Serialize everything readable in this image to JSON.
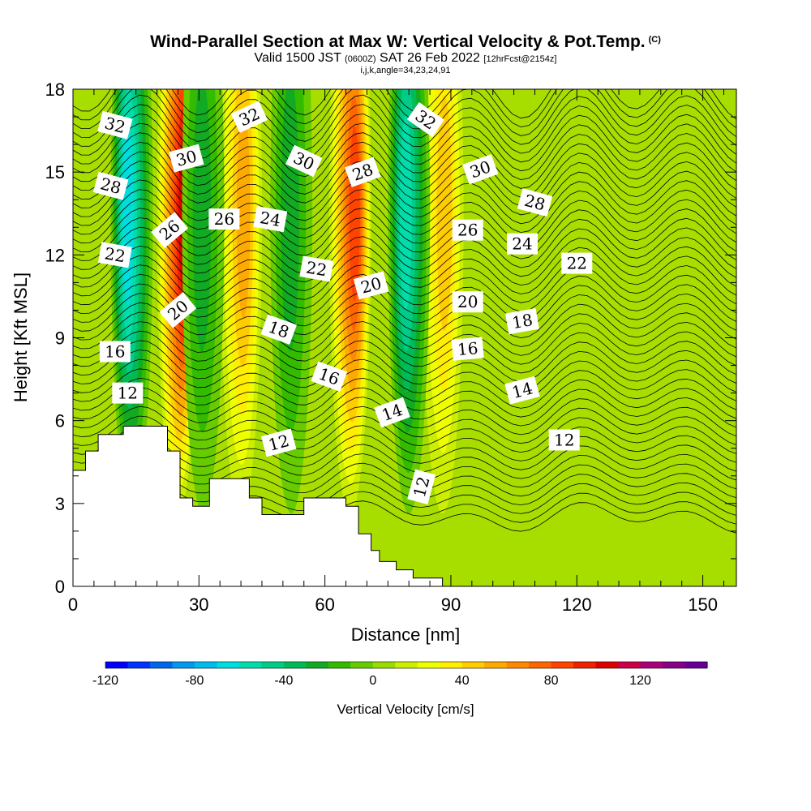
{
  "title": {
    "main": "Wind-Parallel Section at Max W: Vertical Velocity & Pot.Temp.",
    "copyright": "(C)",
    "valid_a": "Valid 1500 JST",
    "valid_zone": "(0600Z)",
    "valid_b": "SAT 26 Feb 2022",
    "valid_fcst": "[12hrFcst@2154z]",
    "indices": "i,j,k,angle=34,23,24,91"
  },
  "chart_data": {
    "type": "heatmap",
    "title": "Wind-Parallel Section at Max W: Vertical Velocity & Pot.Temp.",
    "xlabel": "Distance [nm]",
    "ylabel": "Height [Kft MSL]",
    "xlim": [
      0,
      158
    ],
    "ylim": [
      0,
      18
    ],
    "xticks": [
      0,
      30,
      60,
      90,
      120,
      150
    ],
    "yticks": [
      0,
      3,
      6,
      9,
      12,
      15,
      18
    ],
    "colorbar": {
      "title": "Vertical Velocity [cm/s]",
      "min": -120,
      "max": 150,
      "step": 10,
      "tick_values": [
        -120,
        -80,
        -40,
        0,
        40,
        80,
        120
      ],
      "colors": [
        "#0000ff",
        "#0033ff",
        "#0066ee",
        "#0099ee",
        "#00bbee",
        "#00dddd",
        "#00ddaa",
        "#00cc88",
        "#00bb55",
        "#11aa22",
        "#33bb00",
        "#66cc00",
        "#99dd00",
        "#ccee00",
        "#eeff00",
        "#ffee00",
        "#ffcc00",
        "#ffaa00",
        "#ff8800",
        "#ff6600",
        "#ff4400",
        "#ee2200",
        "#dd0000",
        "#cc0044",
        "#aa0077",
        "#880088",
        "#660099"
      ]
    },
    "updraft_bands": [
      {
        "x": 25,
        "peak_cm_s": 100
      },
      {
        "x": 40,
        "peak_cm_s": 50
      },
      {
        "x": 66,
        "peak_cm_s": 80
      },
      {
        "x": 88,
        "peak_cm_s": 40
      }
    ],
    "downdraft_bands": [
      {
        "x": 14,
        "peak_cm_s": -70
      },
      {
        "x": 31,
        "peak_cm_s": -30
      },
      {
        "x": 52,
        "peak_cm_s": -30
      },
      {
        "x": 80,
        "peak_cm_s": -60
      }
    ],
    "contour_labels": [
      {
        "text": "32",
        "x": 10,
        "y": 16.7,
        "angle": 15
      },
      {
        "text": "28",
        "x": 9,
        "y": 14.5,
        "angle": 15
      },
      {
        "text": "22",
        "x": 10,
        "y": 12,
        "angle": 10
      },
      {
        "text": "16",
        "x": 10,
        "y": 8.5,
        "angle": 0
      },
      {
        "text": "12",
        "x": 13,
        "y": 7,
        "angle": 0
      },
      {
        "text": "30",
        "x": 27,
        "y": 15.5,
        "angle": -15
      },
      {
        "text": "26",
        "x": 23,
        "y": 12.9,
        "angle": -40
      },
      {
        "text": "20",
        "x": 25,
        "y": 10,
        "angle": -40
      },
      {
        "text": "26",
        "x": 36,
        "y": 13.3,
        "angle": 0
      },
      {
        "text": "32",
        "x": 42,
        "y": 17,
        "angle": -25
      },
      {
        "text": "24",
        "x": 47,
        "y": 13.3,
        "angle": 10
      },
      {
        "text": "30",
        "x": 55,
        "y": 15.4,
        "angle": 25
      },
      {
        "text": "18",
        "x": 49,
        "y": 9.3,
        "angle": 20
      },
      {
        "text": "22",
        "x": 58,
        "y": 11.5,
        "angle": 10
      },
      {
        "text": "28",
        "x": 69,
        "y": 15,
        "angle": -20
      },
      {
        "text": "16",
        "x": 61,
        "y": 7.6,
        "angle": 20
      },
      {
        "text": "12",
        "x": 49,
        "y": 5.2,
        "angle": -15
      },
      {
        "text": "20",
        "x": 71,
        "y": 10.9,
        "angle": -15
      },
      {
        "text": "14",
        "x": 76,
        "y": 6.3,
        "angle": -20
      },
      {
        "text": "32",
        "x": 84,
        "y": 16.9,
        "angle": 35
      },
      {
        "text": "12",
        "x": 83,
        "y": 3.6,
        "angle": -75
      },
      {
        "text": "30",
        "x": 97,
        "y": 15.1,
        "angle": -20
      },
      {
        "text": "26",
        "x": 94,
        "y": 12.9,
        "angle": 0
      },
      {
        "text": "20",
        "x": 94,
        "y": 10.3,
        "angle": 0
      },
      {
        "text": "16",
        "x": 94,
        "y": 8.6,
        "angle": -5
      },
      {
        "text": "28",
        "x": 110,
        "y": 13.9,
        "angle": 15
      },
      {
        "text": "24",
        "x": 107,
        "y": 12.4,
        "angle": 0
      },
      {
        "text": "18",
        "x": 107,
        "y": 9.6,
        "angle": -10
      },
      {
        "text": "14",
        "x": 107,
        "y": 7.1,
        "angle": -15
      },
      {
        "text": "22",
        "x": 120,
        "y": 11.7,
        "angle": 0
      },
      {
        "text": "12",
        "x": 117,
        "y": 5.3,
        "angle": 0
      }
    ],
    "terrain": [
      [
        0,
        4.2
      ],
      [
        3,
        4.2
      ],
      [
        3,
        4.9
      ],
      [
        6,
        4.9
      ],
      [
        6,
        5.5
      ],
      [
        12,
        5.5
      ],
      [
        12,
        5.8
      ],
      [
        22.5,
        5.8
      ],
      [
        22.5,
        4.9
      ],
      [
        25.5,
        4.9
      ],
      [
        25.5,
        3.2
      ],
      [
        28.5,
        3.2
      ],
      [
        28.5,
        2.9
      ],
      [
        32.5,
        2.9
      ],
      [
        32.5,
        3.9
      ],
      [
        42,
        3.9
      ],
      [
        42,
        3.2
      ],
      [
        45,
        3.2
      ],
      [
        45,
        2.6
      ],
      [
        55,
        2.6
      ],
      [
        55,
        3.2
      ],
      [
        65,
        3.2
      ],
      [
        65,
        2.9
      ],
      [
        68,
        2.9
      ],
      [
        68,
        1.9
      ],
      [
        71,
        1.9
      ],
      [
        71,
        1.3
      ],
      [
        73,
        1.3
      ],
      [
        73,
        0.9
      ],
      [
        77,
        0.9
      ],
      [
        77,
        0.6
      ],
      [
        81,
        0.6
      ],
      [
        81,
        0.3
      ],
      [
        88,
        0.3
      ],
      [
        88,
        0
      ],
      [
        158,
        0
      ]
    ]
  }
}
